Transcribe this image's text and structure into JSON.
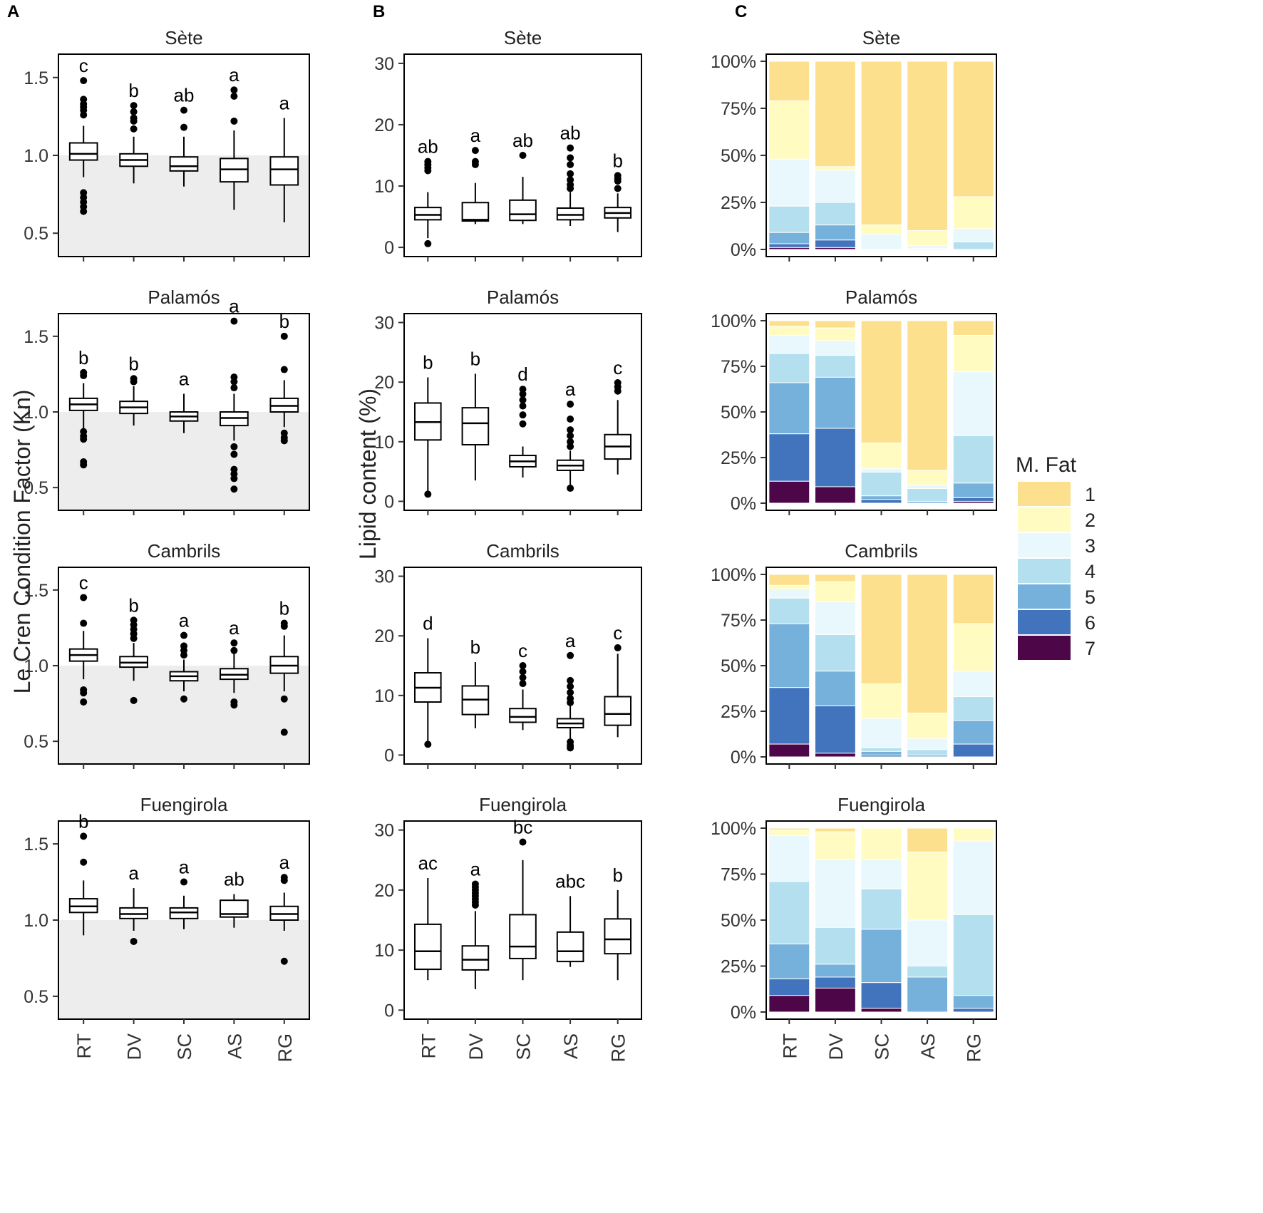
{
  "figure": {
    "panel_labels": [
      "A",
      "B",
      "C"
    ],
    "groups": [
      "RT",
      "DV",
      "SC",
      "AS",
      "RG"
    ],
    "sites": [
      "Sète",
      "Palamós",
      "Cambrils",
      "Fuengirola"
    ]
  },
  "colors": {
    "mfat": [
      "#fde08d",
      "#fffbc1",
      "#e8f8fc",
      "#b4dfee",
      "#75b1da",
      "#4174bd",
      "#4d0648"
    ],
    "reference_shade": "#ededed",
    "box_stroke": "#000000"
  },
  "chart_data": [
    {
      "panel": "A",
      "type": "box",
      "ylabel": "Le Cren Condition Factor (Kn)",
      "yticks": [
        "0.5",
        "1.0",
        "1.5"
      ],
      "ylim": [
        0.35,
        1.65
      ],
      "shade_below": 1.0,
      "facets": [
        {
          "title": "Sète",
          "letters": [
            "c",
            "b",
            "ab",
            "a",
            "a"
          ],
          "boxes": [
            {
              "q1": 0.97,
              "med": 1.01,
              "q3": 1.08,
              "lo": 0.86,
              "hi": 1.19,
              "out": [
                1.48,
                1.36,
                1.33,
                1.31,
                1.29,
                1.26,
                0.76,
                0.73,
                0.7,
                0.67,
                0.64
              ]
            },
            {
              "q1": 0.93,
              "med": 0.97,
              "q3": 1.01,
              "lo": 0.82,
              "hi": 1.12,
              "out": [
                1.32,
                1.28,
                1.24,
                1.22,
                1.17
              ]
            },
            {
              "q1": 0.9,
              "med": 0.93,
              "q3": 0.99,
              "lo": 0.8,
              "hi": 1.12,
              "out": [
                1.29,
                1.18
              ]
            },
            {
              "q1": 0.83,
              "med": 0.91,
              "q3": 0.98,
              "lo": 0.65,
              "hi": 1.16,
              "out": [
                1.42,
                1.38,
                1.22
              ]
            },
            {
              "q1": 0.81,
              "med": 0.91,
              "q3": 0.99,
              "lo": 0.57,
              "hi": 1.24,
              "out": []
            }
          ]
        },
        {
          "title": "Palamós",
          "letters": [
            "b",
            "b",
            "a",
            "a",
            "b"
          ],
          "boxes": [
            {
              "q1": 1.01,
              "med": 1.05,
              "q3": 1.09,
              "lo": 0.89,
              "hi": 1.19,
              "out": [
                1.26,
                1.24,
                0.87,
                0.84,
                0.82,
                0.67,
                0.65
              ]
            },
            {
              "q1": 0.99,
              "med": 1.03,
              "q3": 1.07,
              "lo": 0.91,
              "hi": 1.17,
              "out": [
                1.22,
                1.2
              ]
            },
            {
              "q1": 0.94,
              "med": 0.97,
              "q3": 1.0,
              "lo": 0.86,
              "hi": 1.12,
              "out": []
            },
            {
              "q1": 0.91,
              "med": 0.96,
              "q3": 1.0,
              "lo": 0.81,
              "hi": 1.12,
              "out": [
                1.6,
                1.23,
                1.2,
                1.16,
                0.77,
                0.72,
                0.62,
                0.59,
                0.56,
                0.49
              ]
            },
            {
              "q1": 1.0,
              "med": 1.04,
              "q3": 1.09,
              "lo": 0.9,
              "hi": 1.21,
              "out": [
                1.5,
                1.28,
                0.86,
                0.83,
                0.81
              ]
            }
          ]
        },
        {
          "title": "Cambrils",
          "letters": [
            "c",
            "b",
            "a",
            "a",
            "b"
          ],
          "boxes": [
            {
              "q1": 1.03,
              "med": 1.07,
              "q3": 1.11,
              "lo": 0.91,
              "hi": 1.23,
              "out": [
                1.45,
                1.28,
                0.84,
                0.82,
                0.76
              ]
            },
            {
              "q1": 0.99,
              "med": 1.02,
              "q3": 1.06,
              "lo": 0.9,
              "hi": 1.15,
              "out": [
                1.3,
                1.27,
                1.24,
                1.21,
                1.18,
                0.77
              ]
            },
            {
              "q1": 0.9,
              "med": 0.93,
              "q3": 0.96,
              "lo": 0.83,
              "hi": 1.04,
              "out": [
                1.2,
                1.13,
                1.1,
                1.07,
                0.78
              ]
            },
            {
              "q1": 0.91,
              "med": 0.94,
              "q3": 0.98,
              "lo": 0.82,
              "hi": 1.08,
              "out": [
                1.15,
                1.1,
                0.76,
                0.74
              ]
            },
            {
              "q1": 0.95,
              "med": 1.0,
              "q3": 1.06,
              "lo": 0.83,
              "hi": 1.2,
              "out": [
                1.28,
                1.26,
                0.78,
                0.56
              ]
            }
          ]
        },
        {
          "title": "Fuengirola",
          "letters": [
            "b",
            "a",
            "a",
            "ab",
            "a"
          ],
          "boxes": [
            {
              "q1": 1.05,
              "med": 1.09,
              "q3": 1.14,
              "lo": 0.9,
              "hi": 1.26,
              "out": [
                1.55,
                1.38
              ]
            },
            {
              "q1": 1.01,
              "med": 1.04,
              "q3": 1.08,
              "lo": 0.93,
              "hi": 1.21,
              "out": [
                0.86
              ]
            },
            {
              "q1": 1.01,
              "med": 1.05,
              "q3": 1.08,
              "lo": 0.94,
              "hi": 1.16,
              "out": [
                1.25
              ]
            },
            {
              "q1": 1.02,
              "med": 1.04,
              "q3": 1.13,
              "lo": 0.95,
              "hi": 1.17,
              "out": []
            },
            {
              "q1": 1.0,
              "med": 1.04,
              "q3": 1.09,
              "lo": 0.93,
              "hi": 1.18,
              "out": [
                1.28,
                1.26,
                0.73
              ]
            }
          ]
        }
      ]
    },
    {
      "panel": "B",
      "type": "box",
      "ylabel": "Lipid content (%)",
      "yticks": [
        "0",
        "10",
        "20",
        "30"
      ],
      "ylim": [
        -1.5,
        31.5
      ],
      "facets": [
        {
          "title": "Sète",
          "letters": [
            "ab",
            "a",
            "ab",
            "ab",
            "b"
          ],
          "boxes": [
            {
              "q1": 4.5,
              "med": 5.3,
              "q3": 6.5,
              "lo": 1.5,
              "hi": 9.0,
              "out": [
                14.0,
                13.5,
                13.0,
                12.5,
                0.6
              ]
            },
            {
              "q1": 4.3,
              "med": 4.5,
              "q3": 7.3,
              "lo": 3.8,
              "hi": 10.5,
              "out": [
                15.8,
                14.0,
                13.5
              ]
            },
            {
              "q1": 4.4,
              "med": 5.4,
              "q3": 7.7,
              "lo": 3.8,
              "hi": 11.5,
              "out": [
                15.0
              ]
            },
            {
              "q1": 4.5,
              "med": 5.3,
              "q3": 6.4,
              "lo": 3.5,
              "hi": 9.0,
              "out": [
                16.2,
                14.6,
                13.5,
                12.0,
                11.0,
                10.2,
                9.6
              ]
            },
            {
              "q1": 4.8,
              "med": 5.6,
              "q3": 6.5,
              "lo": 2.5,
              "hi": 8.8,
              "out": [
                11.7,
                11.2,
                10.8,
                9.6
              ]
            }
          ]
        },
        {
          "title": "Palamós",
          "letters": [
            "b",
            "b",
            "d",
            "a",
            "c"
          ],
          "boxes": [
            {
              "q1": 10.3,
              "med": 13.3,
              "q3": 16.5,
              "lo": 1.3,
              "hi": 20.8,
              "out": [
                1.2
              ]
            },
            {
              "q1": 9.5,
              "med": 13.1,
              "q3": 15.7,
              "lo": 3.5,
              "hi": 21.4,
              "out": []
            },
            {
              "q1": 5.8,
              "med": 6.7,
              "q3": 7.7,
              "lo": 4.0,
              "hi": 9.2,
              "out": [
                18.8,
                18.0,
                17.0,
                16.0,
                14.5,
                13.0
              ]
            },
            {
              "q1": 5.2,
              "med": 6.0,
              "q3": 6.9,
              "lo": 2.3,
              "hi": 8.5,
              "out": [
                16.3,
                13.8,
                12.0,
                11.0,
                10.0,
                9.2,
                2.2
              ]
            },
            {
              "q1": 7.1,
              "med": 9.2,
              "q3": 11.2,
              "lo": 4.5,
              "hi": 17.0,
              "out": [
                19.9,
                19.2,
                18.5
              ]
            }
          ]
        },
        {
          "title": "Cambrils",
          "letters": [
            "d",
            "b",
            "c",
            "a",
            "c"
          ],
          "boxes": [
            {
              "q1": 8.9,
              "med": 11.3,
              "q3": 13.8,
              "lo": 2.0,
              "hi": 19.6,
              "out": [
                1.8
              ]
            },
            {
              "q1": 6.8,
              "med": 9.3,
              "q3": 11.6,
              "lo": 4.5,
              "hi": 15.6,
              "out": []
            },
            {
              "q1": 5.5,
              "med": 6.4,
              "q3": 7.8,
              "lo": 4.2,
              "hi": 11.0,
              "out": [
                15.0,
                14.0,
                13.0,
                12.0
              ]
            },
            {
              "q1": 4.6,
              "med": 5.3,
              "q3": 6.1,
              "lo": 2.5,
              "hi": 8.5,
              "out": [
                16.7,
                12.5,
                11.5,
                10.5,
                9.5,
                8.8,
                2.2,
                1.6,
                1.2
              ]
            },
            {
              "q1": 5.0,
              "med": 6.9,
              "q3": 9.8,
              "lo": 3.0,
              "hi": 17.0,
              "out": [
                18.0
              ]
            }
          ]
        },
        {
          "title": "Fuengirola",
          "letters": [
            "ac",
            "a",
            "bc",
            "abc",
            "b"
          ],
          "boxes": [
            {
              "q1": 6.8,
              "med": 9.8,
              "q3": 14.3,
              "lo": 5.0,
              "hi": 22.0,
              "out": []
            },
            {
              "q1": 6.7,
              "med": 8.4,
              "q3": 10.7,
              "lo": 3.5,
              "hi": 16.5,
              "out": [
                21.0,
                20.5,
                20.0,
                19.5,
                19.0,
                18.5,
                18.0,
                17.5
              ]
            },
            {
              "q1": 8.6,
              "med": 10.6,
              "q3": 15.9,
              "lo": 5.0,
              "hi": 25.0,
              "out": [
                28.0
              ]
            },
            {
              "q1": 8.1,
              "med": 9.8,
              "q3": 13.0,
              "lo": 7.2,
              "hi": 19.0,
              "out": []
            },
            {
              "q1": 9.4,
              "med": 11.8,
              "q3": 15.2,
              "lo": 5.0,
              "hi": 20.0,
              "out": []
            }
          ]
        }
      ]
    },
    {
      "panel": "C",
      "type": "stacked_bar",
      "yticks": [
        "0%",
        "25%",
        "50%",
        "75%",
        "100%"
      ],
      "ylim": [
        0,
        1
      ],
      "legend_title": "M. Fat",
      "legend_labels": [
        "1",
        "2",
        "3",
        "4",
        "5",
        "6",
        "7"
      ],
      "facets": [
        {
          "title": "Sète",
          "bars": [
            [
              0.21,
              0.31,
              0.25,
              0.14,
              0.06,
              0.02,
              0.01
            ],
            [
              0.56,
              0.02,
              0.17,
              0.12,
              0.08,
              0.04,
              0.01
            ],
            [
              0.87,
              0.05,
              0.08,
              0,
              0,
              0,
              0
            ],
            [
              0.9,
              0.08,
              0.015,
              0.005,
              0,
              0,
              0
            ],
            [
              0.72,
              0.17,
              0.07,
              0.04,
              0,
              0,
              0
            ]
          ]
        },
        {
          "title": "Palamós",
          "bars": [
            [
              0.03,
              0.05,
              0.1,
              0.16,
              0.28,
              0.26,
              0.12
            ],
            [
              0.04,
              0.07,
              0.08,
              0.12,
              0.28,
              0.32,
              0.09
            ],
            [
              0.67,
              0.14,
              0.02,
              0.13,
              0.02,
              0.02,
              0
            ],
            [
              0.82,
              0.08,
              0.02,
              0.07,
              0.01,
              0,
              0
            ],
            [
              0.08,
              0.2,
              0.35,
              0.26,
              0.08,
              0.02,
              0.01
            ]
          ]
        },
        {
          "title": "Cambrils",
          "bars": [
            [
              0.06,
              0.02,
              0.05,
              0.14,
              0.35,
              0.31,
              0.07
            ],
            [
              0.04,
              0.11,
              0.18,
              0.2,
              0.19,
              0.26,
              0.02
            ],
            [
              0.6,
              0.19,
              0.16,
              0.02,
              0.02,
              0.01,
              0
            ],
            [
              0.76,
              0.14,
              0.06,
              0.03,
              0.01,
              0,
              0
            ],
            [
              0.27,
              0.26,
              0.14,
              0.13,
              0.13,
              0.07,
              0
            ]
          ]
        },
        {
          "title": "Fuengirola",
          "bars": [
            [
              0.01,
              0.03,
              0.25,
              0.34,
              0.19,
              0.09,
              0.09
            ],
            [
              0.02,
              0.15,
              0.37,
              0.2,
              0.07,
              0.06,
              0.13
            ],
            [
              0.0,
              0.17,
              0.16,
              0.22,
              0.29,
              0.14,
              0.02
            ],
            [
              0.13,
              0.37,
              0.25,
              0.06,
              0.19,
              0,
              0
            ],
            [
              0.0,
              0.07,
              0.4,
              0.44,
              0.07,
              0.02,
              0
            ]
          ]
        }
      ]
    }
  ]
}
